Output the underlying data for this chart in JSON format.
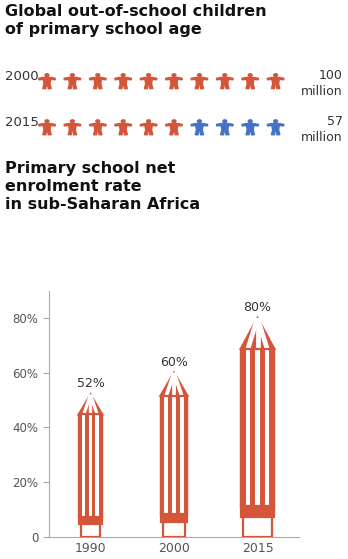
{
  "title1": "Global out-of-school children\nof primary school age",
  "title2": "Primary school net\nenrolment rate\nin sub-Saharan Africa",
  "year2000_count": 10,
  "year2015_red": 6,
  "year2015_blue": 4,
  "val_2000": "100\nmillion",
  "val_2015": "57\nmillion",
  "bar_years": [
    "1990",
    "2000",
    "2015"
  ],
  "bar_values": [
    52,
    60,
    80
  ],
  "bar_labels": [
    "52%",
    "60%",
    "80%"
  ],
  "pencil_color": "#d4563a",
  "person_red": "#d4563a",
  "person_blue": "#4472c4",
  "bg_color": "#ffffff",
  "text_color": "#333333",
  "title_color": "#111111",
  "ytick_labels": [
    "0",
    "20%",
    "40%",
    "60%",
    "80%"
  ],
  "ytick_vals": [
    0,
    20,
    40,
    60,
    80
  ]
}
